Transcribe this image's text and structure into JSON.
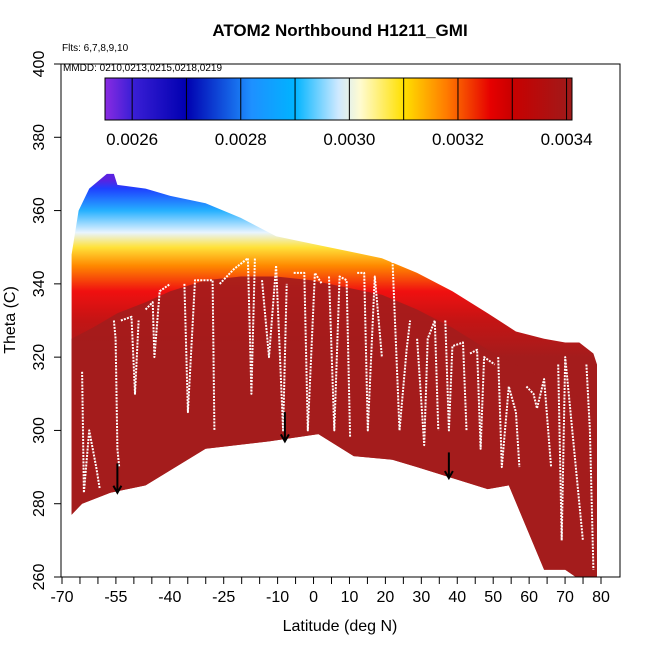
{
  "chart_data": {
    "type": "heatmap",
    "title": "ATOM2 Northbound H1211_GMI",
    "subtitle_flights": "Flts: 6,7,8,9,10",
    "subtitle_dates": "MMDD: 0210,0213,0215,0218,0219",
    "xlabel": "Latitude (deg N)",
    "ylabel": "Theta (C)",
    "xlim": [
      -70,
      82
    ],
    "ylim": [
      260,
      400
    ],
    "x_ticks": [
      -70,
      -55,
      -40,
      -25,
      -10,
      0,
      10,
      20,
      30,
      40,
      50,
      60,
      70,
      80
    ],
    "x_tick_labels": [
      "-70",
      "-55",
      "-40",
      "-25",
      "-10",
      "0",
      "10",
      "20",
      "30",
      "40",
      "50",
      "60",
      "70",
      "80"
    ],
    "x_minor_ticks": [
      -65,
      -60,
      -50,
      -45,
      -35,
      -30,
      -20,
      -15,
      -5,
      5,
      15,
      25,
      35,
      45,
      55,
      65,
      75
    ],
    "y_ticks": [
      260,
      280,
      300,
      320,
      340,
      360,
      380,
      400
    ],
    "y_tick_labels": [
      "260",
      "280",
      "300",
      "320",
      "340",
      "360",
      "380",
      "400"
    ],
    "colorbar": {
      "range": [
        0.00255,
        0.00341
      ],
      "ticks": [
        0.0026,
        0.0028,
        0.003,
        0.0032,
        0.0034
      ],
      "tick_labels": [
        "0.0026",
        "0.0028",
        "0.0030",
        "0.0032",
        "0.0034"
      ],
      "divisions": [
        0.0026,
        0.0027,
        0.0028,
        0.0029,
        0.003,
        0.0031,
        0.0032,
        0.0033,
        0.0034
      ],
      "colors": [
        {
          "v": 0.00255,
          "c": "#8a2be2"
        },
        {
          "v": 0.0026,
          "c": "#3b1fd6"
        },
        {
          "v": 0.0027,
          "c": "#0000b0"
        },
        {
          "v": 0.00282,
          "c": "#1e90ff"
        },
        {
          "v": 0.0029,
          "c": "#00b4ff"
        },
        {
          "v": 0.00298,
          "c": "#cfe9ff"
        },
        {
          "v": 0.00302,
          "c": "#fffbd0"
        },
        {
          "v": 0.0031,
          "c": "#ffe000"
        },
        {
          "v": 0.00318,
          "c": "#ff7a00"
        },
        {
          "v": 0.00326,
          "c": "#e60000"
        },
        {
          "v": 0.0033,
          "c": "#c80000"
        },
        {
          "v": 0.00341,
          "c": "#9e1b1b"
        }
      ]
    },
    "field_top_theta": [
      {
        "lat": -68.0,
        "theta": 348
      },
      {
        "lat": -66.0,
        "theta": 360
      },
      {
        "lat": -63.0,
        "theta": 366
      },
      {
        "lat": -58.0,
        "theta": 370
      },
      {
        "lat": -56.0,
        "theta": 370
      },
      {
        "lat": -55.0,
        "theta": 367
      },
      {
        "lat": -47.0,
        "theta": 366
      },
      {
        "lat": -40.0,
        "theta": 364
      },
      {
        "lat": -30.0,
        "theta": 362
      },
      {
        "lat": -20.0,
        "theta": 358
      },
      {
        "lat": -10.0,
        "theta": 353
      },
      {
        "lat": 0.0,
        "theta": 351
      },
      {
        "lat": 10.0,
        "theta": 349
      },
      {
        "lat": 20.0,
        "theta": 347
      },
      {
        "lat": 30.0,
        "theta": 343
      },
      {
        "lat": 40.0,
        "theta": 338
      },
      {
        "lat": 50.0,
        "theta": 332
      },
      {
        "lat": 58.0,
        "theta": 327
      },
      {
        "lat": 66.0,
        "theta": 325
      },
      {
        "lat": 72.0,
        "theta": 324
      },
      {
        "lat": 76.0,
        "theta": 324
      },
      {
        "lat": 80.0,
        "theta": 321
      },
      {
        "lat": 81.0,
        "theta": 318
      }
    ],
    "field_bottom_theta": [
      {
        "lat": -68.0,
        "theta": 277
      },
      {
        "lat": -65.0,
        "theta": 280
      },
      {
        "lat": -57.0,
        "theta": 283
      },
      {
        "lat": -47.0,
        "theta": 285
      },
      {
        "lat": -30.0,
        "theta": 295
      },
      {
        "lat": -12.0,
        "theta": 297
      },
      {
        "lat": 2.0,
        "theta": 299
      },
      {
        "lat": 12.0,
        "theta": 293
      },
      {
        "lat": 23.0,
        "theta": 292
      },
      {
        "lat": 30.0,
        "theta": 290
      },
      {
        "lat": 40.0,
        "theta": 287
      },
      {
        "lat": 50.0,
        "theta": 284
      },
      {
        "lat": 56.0,
        "theta": 285
      },
      {
        "lat": 66.0,
        "theta": 262
      },
      {
        "lat": 72.0,
        "theta": 262
      },
      {
        "lat": 75.0,
        "theta": 260
      },
      {
        "lat": 81.0,
        "theta": 260
      }
    ],
    "tropopause_profile": [
      {
        "lat": -68.0,
        "theta": 325
      },
      {
        "lat": -62.0,
        "theta": 328
      },
      {
        "lat": -55.0,
        "theta": 332
      },
      {
        "lat": -47.0,
        "theta": 335
      },
      {
        "lat": -40.0,
        "theta": 338
      },
      {
        "lat": -30.0,
        "theta": 341
      },
      {
        "lat": -20.0,
        "theta": 342
      },
      {
        "lat": -10.0,
        "theta": 342
      },
      {
        "lat": 0.0,
        "theta": 341
      },
      {
        "lat": 10.0,
        "theta": 339
      },
      {
        "lat": 20.0,
        "theta": 337
      },
      {
        "lat": 30.0,
        "theta": 333
      },
      {
        "lat": 40.0,
        "theta": 328
      },
      {
        "lat": 50.0,
        "theta": 322
      },
      {
        "lat": 60.0,
        "theta": 317
      },
      {
        "lat": 70.0,
        "theta": 313
      },
      {
        "lat": 76.0,
        "theta": 309
      },
      {
        "lat": 81.0,
        "theta": 304
      }
    ],
    "flight_tracks": [
      [
        {
          "lat": -65,
          "theta": 316
        },
        {
          "lat": -64.5,
          "theta": 283
        },
        {
          "lat": -63,
          "theta": 300
        },
        {
          "lat": -61,
          "theta": 290
        },
        {
          "lat": -60,
          "theta": 284
        }
      ],
      [
        {
          "lat": -56,
          "theta": 330
        },
        {
          "lat": -55.5,
          "theta": 325
        },
        {
          "lat": -55,
          "theta": 295
        },
        {
          "lat": -54.5,
          "theta": 290
        }
      ],
      [
        {
          "lat": -54,
          "theta": 330
        },
        {
          "lat": -51,
          "theta": 331
        },
        {
          "lat": -50,
          "theta": 310
        },
        {
          "lat": -49,
          "theta": 330
        }
      ],
      [
        {
          "lat": -47,
          "theta": 333
        },
        {
          "lat": -45,
          "theta": 335
        },
        {
          "lat": -44.5,
          "theta": 320
        },
        {
          "lat": -43,
          "theta": 338
        },
        {
          "lat": -40,
          "theta": 340
        }
      ],
      [
        {
          "lat": -36,
          "theta": 340
        },
        {
          "lat": -35,
          "theta": 305
        },
        {
          "lat": -33,
          "theta": 341
        },
        {
          "lat": -28,
          "theta": 341
        },
        {
          "lat": -27.5,
          "theta": 300
        }
      ],
      [
        {
          "lat": -26,
          "theta": 340
        },
        {
          "lat": -22,
          "theta": 344
        },
        {
          "lat": -18,
          "theta": 347
        },
        {
          "lat": -17,
          "theta": 310
        },
        {
          "lat": -16,
          "theta": 347
        }
      ],
      [
        {
          "lat": -14,
          "theta": 341
        },
        {
          "lat": -12,
          "theta": 320
        },
        {
          "lat": -10,
          "theta": 345
        },
        {
          "lat": -8,
          "theta": 300
        },
        {
          "lat": -7,
          "theta": 340
        }
      ],
      [
        {
          "lat": -5,
          "theta": 343
        },
        {
          "lat": -2,
          "theta": 343
        },
        {
          "lat": -1,
          "theta": 300
        },
        {
          "lat": 1,
          "theta": 343
        },
        {
          "lat": 3,
          "theta": 340
        }
      ],
      [
        {
          "lat": 5,
          "theta": 342
        },
        {
          "lat": 6.5,
          "theta": 300
        },
        {
          "lat": 8,
          "theta": 342
        },
        {
          "lat": 10,
          "theta": 341
        },
        {
          "lat": 11,
          "theta": 298
        }
      ],
      [
        {
          "lat": 13,
          "theta": 343
        },
        {
          "lat": 15,
          "theta": 343
        },
        {
          "lat": 16,
          "theta": 300
        },
        {
          "lat": 18,
          "theta": 342
        },
        {
          "lat": 20,
          "theta": 320
        }
      ],
      [
        {
          "lat": 22,
          "theta": 347
        },
        {
          "lat": 23,
          "theta": 347
        },
        {
          "lat": 25,
          "theta": 300
        },
        {
          "lat": 27,
          "theta": 322
        },
        {
          "lat": 28,
          "theta": 330
        }
      ],
      [
        {
          "lat": 30,
          "theta": 325
        },
        {
          "lat": 32,
          "theta": 296
        },
        {
          "lat": 33,
          "theta": 325
        },
        {
          "lat": 35,
          "theta": 330
        },
        {
          "lat": 36,
          "theta": 300
        }
      ],
      [
        {
          "lat": 38,
          "theta": 330
        },
        {
          "lat": 39,
          "theta": 300
        },
        {
          "lat": 40,
          "theta": 323
        },
        {
          "lat": 43,
          "theta": 324
        },
        {
          "lat": 44,
          "theta": 300
        }
      ],
      [
        {
          "lat": 45,
          "theta": 321
        },
        {
          "lat": 47,
          "theta": 322
        },
        {
          "lat": 48,
          "theta": 295
        },
        {
          "lat": 49,
          "theta": 320
        },
        {
          "lat": 52,
          "theta": 318
        }
      ],
      [
        {
          "lat": 53,
          "theta": 320
        },
        {
          "lat": 54,
          "theta": 290
        },
        {
          "lat": 56,
          "theta": 312
        },
        {
          "lat": 58,
          "theta": 305
        },
        {
          "lat": 59,
          "theta": 290
        }
      ],
      [
        {
          "lat": 61,
          "theta": 312
        },
        {
          "lat": 63,
          "theta": 310
        },
        {
          "lat": 64,
          "theta": 306
        },
        {
          "lat": 66,
          "theta": 314
        },
        {
          "lat": 68,
          "theta": 290
        }
      ],
      [
        {
          "lat": 70,
          "theta": 318
        },
        {
          "lat": 71,
          "theta": 270
        },
        {
          "lat": 72,
          "theta": 320
        },
        {
          "lat": 75,
          "theta": 290
        },
        {
          "lat": 77,
          "theta": 270
        }
      ],
      [
        {
          "lat": 78,
          "theta": 318
        },
        {
          "lat": 79,
          "theta": 300
        },
        {
          "lat": 80,
          "theta": 262
        }
      ]
    ],
    "arrows": [
      {
        "lat": -55,
        "theta_from": 291,
        "theta_to": 283
      },
      {
        "lat": -7.5,
        "theta_from": 305,
        "theta_to": 297
      },
      {
        "lat": 39,
        "theta_from": 294,
        "theta_to": 287
      }
    ]
  }
}
